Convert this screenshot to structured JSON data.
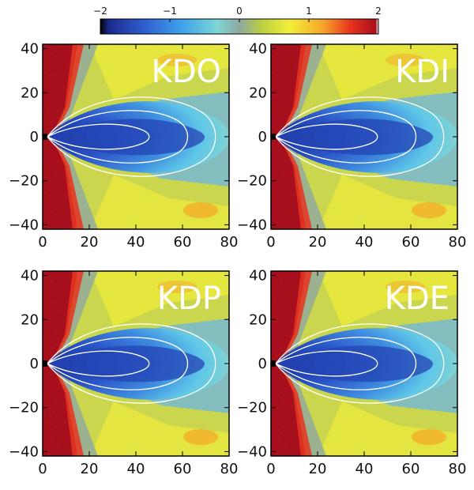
{
  "chart_data": {
    "type": "heatmap",
    "colorbar": {
      "range": [
        -2,
        2
      ],
      "tick_values": [
        -2,
        -1,
        0,
        1,
        2
      ],
      "tick_labels": [
        "−2",
        "−1",
        "0",
        "1",
        "2"
      ],
      "colors": [
        "#000000",
        "#1a2a8c",
        "#2f5fd0",
        "#3fa6ea",
        "#7ed6d6",
        "#8ea8a0",
        "#b9d040",
        "#f2ef3a",
        "#f6a62a",
        "#e8321e",
        "#a8101a",
        "#ffffff"
      ]
    },
    "xlim": [
      0,
      80
    ],
    "ylim": [
      -42,
      42
    ],
    "x_ticks": [
      0,
      20,
      40,
      60,
      80
    ],
    "x_tick_labels": [
      "0",
      "20",
      "40",
      "60",
      "80"
    ],
    "y_ticks": [
      -40,
      -20,
      0,
      20,
      40
    ],
    "y_tick_labels": [
      "−40",
      "−20",
      "0",
      "20",
      "40"
    ],
    "panels": [
      {
        "name": "KDO",
        "label": "KDO"
      },
      {
        "name": "KDI",
        "label": "KDI"
      },
      {
        "name": "KDP",
        "label": "KDP"
      },
      {
        "name": "KDE",
        "label": "KDE"
      }
    ]
  }
}
